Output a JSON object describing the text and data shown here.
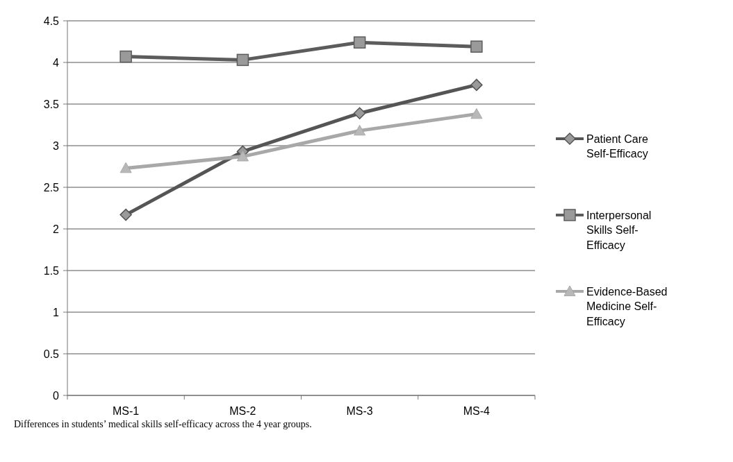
{
  "chart_data": {
    "type": "line",
    "categories": [
      "MS-1",
      "MS-2",
      "MS-3",
      "MS-4"
    ],
    "series": [
      {
        "name": "Patient Care Self-Efficacy",
        "color": "#555555",
        "marker": "diamond",
        "values": [
          2.17,
          2.93,
          3.39,
          3.73
        ]
      },
      {
        "name": "Interpersonal Skills Self-Efficacy",
        "color": "#5c5c5c",
        "marker": "square",
        "values": [
          4.07,
          4.03,
          4.24,
          4.19
        ]
      },
      {
        "name": "Evidence-Based Medicine Self-Efficacy",
        "color": "#a8a8a8",
        "marker": "triangle",
        "values": [
          2.73,
          2.87,
          3.18,
          3.38
        ]
      }
    ],
    "ylim": [
      0,
      4.5
    ],
    "yticks": [
      0,
      0.5,
      1,
      1.5,
      2,
      2.5,
      3,
      3.5,
      4,
      4.5
    ],
    "grid": "y",
    "legend": "right",
    "annotations": [
      "Differences in students’ medical skills self-efficacy across the 4 year groups."
    ]
  }
}
